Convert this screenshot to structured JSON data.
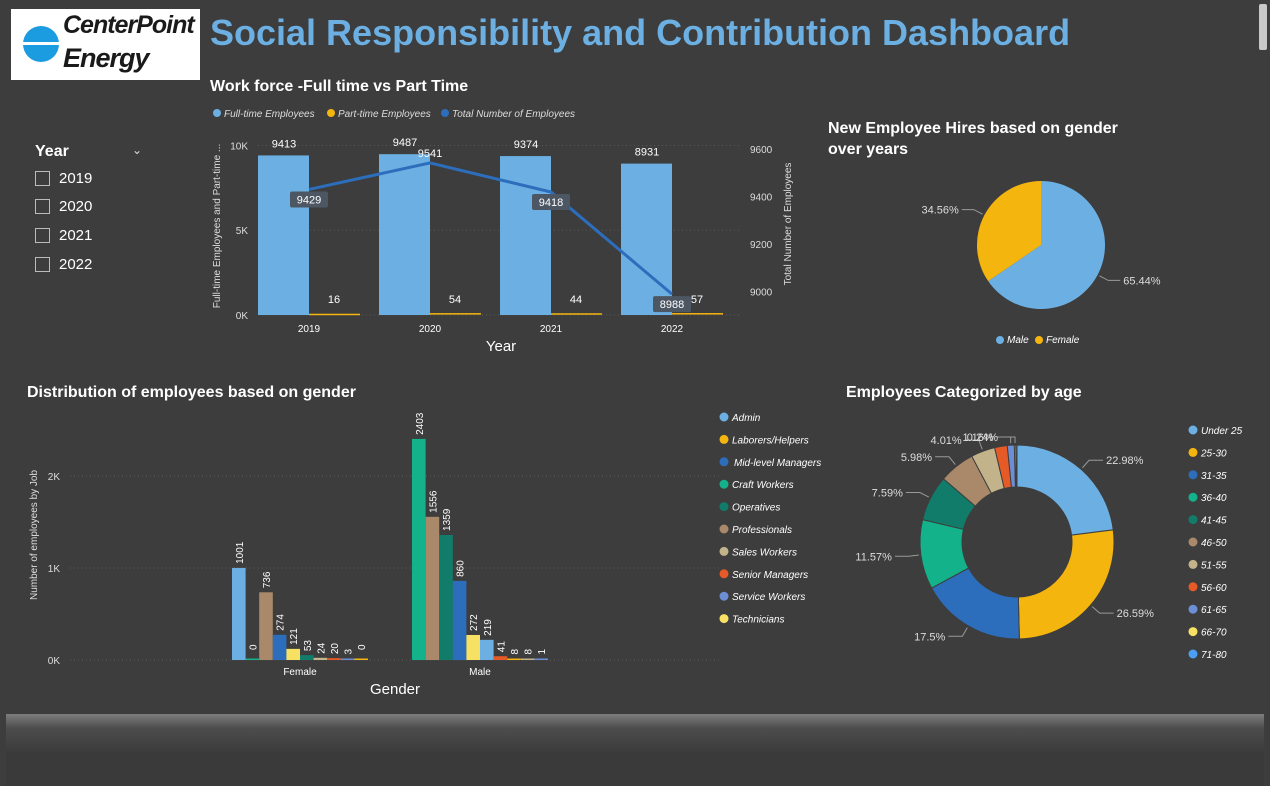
{
  "logo": {
    "line1": "CenterPoint",
    "line2": "Energy",
    "reg": "®"
  },
  "dashboard_title": "Social Responsibility and Contribution Dashboard",
  "slicer": {
    "title": "Year",
    "items": [
      "2019",
      "2020",
      "2021",
      "2022"
    ]
  },
  "colors": {
    "blue_light": "#6cb0e3",
    "amber": "#f5b50f",
    "blue_dark": "#2c6ebc",
    "green": "#14b28a",
    "teal": "#127c6a",
    "tan": "#a9896a",
    "khaki": "#c3b38a",
    "orange_red": "#e55a27",
    "periwinkle": "#6b8ed4",
    "yellow": "#f6e165",
    "sky": "#4b9ef0",
    "title_blue": "#6cb0e3",
    "bg": "#3d3d3d"
  },
  "chart_data": [
    {
      "type": "bar",
      "title": "Work force -Full time vs Part Time",
      "xlabel": "Year",
      "ylabel": "Full-time Employees and Part-time ...",
      "y2label": "Total Number of Employees",
      "categories": [
        "2019",
        "2020",
        "2021",
        "2022"
      ],
      "series": [
        {
          "name": "Full-time Employees",
          "values": [
            9413,
            9487,
            9374,
            8931
          ],
          "labels": [
            "9413",
            "9487",
            "9374",
            "8931"
          ]
        },
        {
          "name": "Part-time Employees",
          "values": [
            16,
            54,
            44,
            57
          ],
          "labels": [
            "16",
            "54",
            "44",
            "57"
          ]
        },
        {
          "name": "Total Number of Employees",
          "type": "line",
          "axis": "right",
          "values": [
            9429,
            9541,
            9418,
            8988
          ],
          "labels": [
            "9429",
            "9541",
            "9418",
            "8988"
          ]
        }
      ],
      "ylim": [
        0,
        10500
      ],
      "yticks": [
        "0K",
        "5K",
        "10K"
      ],
      "y2lim": [
        8900,
        9650
      ],
      "y2ticks": [
        "9000",
        "9200",
        "9400",
        "9600"
      ],
      "legend": "top"
    },
    {
      "type": "pie",
      "title": "New Employee Hires based on gender over years",
      "labels": [
        "Male",
        "Female"
      ],
      "values": [
        65.44,
        34.56
      ],
      "value_labels": [
        "65.44%",
        "34.56%"
      ],
      "legend": "bottom"
    },
    {
      "type": "bar",
      "title": "Distribution of employees based on gender",
      "xlabel": "Gender",
      "ylabel": "Number of employees by Job",
      "categories": [
        "Female",
        "Male"
      ],
      "series": [
        {
          "name": "Admin",
          "values": [
            1001,
            219
          ],
          "labels": [
            "1001",
            "219"
          ]
        },
        {
          "name": "Laborers/Helpers",
          "values": [
            0,
            8
          ],
          "labels": [
            "0",
            "8"
          ]
        },
        {
          "name": "Mid-level Managers",
          "values": [
            274,
            860
          ],
          "labels": [
            "274",
            "860"
          ]
        },
        {
          "name": "Craft Workers",
          "values": [
            0,
            2403
          ],
          "labels": [
            "0",
            "2403"
          ]
        },
        {
          "name": "Operatives",
          "values": [
            53,
            1359
          ],
          "labels": [
            "53",
            "1359"
          ]
        },
        {
          "name": "Professionals",
          "values": [
            736,
            1556
          ],
          "labels": [
            "736",
            "1556"
          ]
        },
        {
          "name": "Sales Workers",
          "values": [
            24,
            8
          ],
          "labels": [
            "24",
            "8"
          ]
        },
        {
          "name": "Senior Managers",
          "values": [
            20,
            41
          ],
          "labels": [
            "20",
            "41"
          ]
        },
        {
          "name": "Service Workers",
          "values": [
            3,
            1
          ],
          "labels": [
            "3",
            "1"
          ]
        },
        {
          "name": "Technicians",
          "values": [
            121,
            272
          ],
          "labels": [
            "121",
            "272"
          ]
        }
      ],
      "ylim": [
        0,
        2500
      ],
      "yticks": [
        "0K",
        "1K",
        "2K"
      ],
      "legend": "right"
    },
    {
      "type": "pie",
      "subtype": "donut",
      "title": "Employees Categorized by age",
      "labels": [
        "Under 25",
        "25-30",
        "31-35",
        "36-40",
        "41-45",
        "46-50",
        "51-55",
        "56-60",
        "61-65",
        "66-70",
        "71-80"
      ],
      "values": [
        22.98,
        26.59,
        17.5,
        11.57,
        7.59,
        5.98,
        4.01,
        2.1,
        1.16,
        0.24,
        0.2
      ],
      "value_labels": [
        "22.98%",
        "26.59%",
        "17.5%",
        "11.57%",
        "7.59%",
        "5.98%",
        "4.01%",
        "",
        "1.16%",
        "0.24%",
        ""
      ],
      "legend": "right"
    }
  ]
}
